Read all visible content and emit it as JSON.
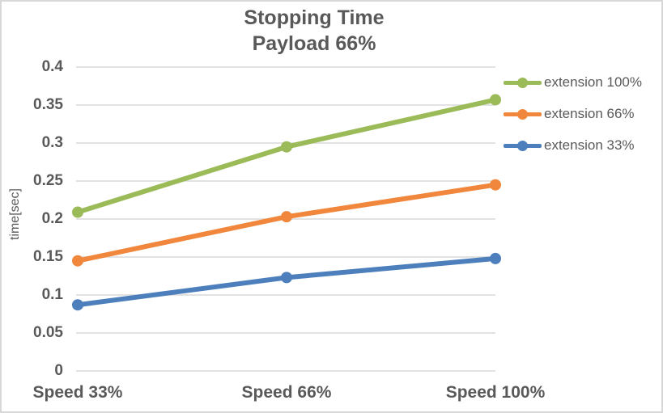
{
  "window": {
    "background": "#ffffff",
    "border_color": "#D8D8D8",
    "text_color": "#595959",
    "gridline_color": "#D9D9D9"
  },
  "chart_data": {
    "type": "line",
    "title": "Stopping Time",
    "subtitle": "Payload 66%",
    "xlabel": "",
    "ylabel": "time[sec]",
    "categories": [
      "Speed 33%",
      "Speed 66%",
      "Speed 100%"
    ],
    "series": [
      {
        "name": "extension 100%",
        "color": "#9BBB59",
        "values": [
          0.209,
          0.295,
          0.357
        ]
      },
      {
        "name": "extension 66%",
        "color": "#F0873C",
        "values": [
          0.145,
          0.203,
          0.245
        ]
      },
      {
        "name": "extension 33%",
        "color": "#4C7FBC",
        "values": [
          0.087,
          0.123,
          0.148
        ]
      }
    ],
    "ylim": [
      0,
      0.4
    ],
    "ytick_step": 0.05,
    "ytick_labels": [
      "0",
      "0.05",
      "0.1",
      "0.15",
      "0.2",
      "0.25",
      "0.3",
      "0.35",
      "0.4"
    ],
    "grid": true,
    "legend_position": "right",
    "marker": "circle"
  }
}
